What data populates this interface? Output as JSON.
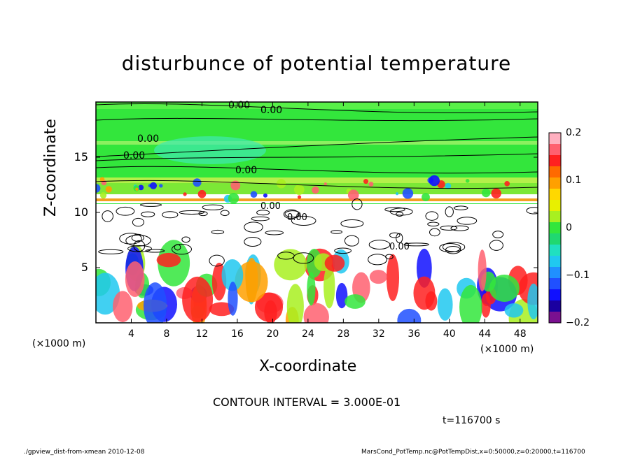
{
  "chart_data": {
    "type": "heatmap",
    "title": "disturbunce of potential temperature",
    "xlabel": "X-coordinate",
    "ylabel": "Z-coordinate",
    "x_unit": "(×1000 m)",
    "y_unit": "(×1000 m)",
    "xlim": [
      0,
      50
    ],
    "ylim": [
      0,
      20
    ],
    "x_ticks": [
      "4",
      "8",
      "12",
      "16",
      "20",
      "24",
      "28",
      "32",
      "36",
      "40",
      "44",
      "48"
    ],
    "y_ticks": [
      "5",
      "10",
      "15"
    ],
    "colorbar": {
      "range": [
        -0.2,
        0.2
      ],
      "tick_labels": [
        "0.2",
        "0.1",
        "0",
        "−0.1",
        "−0.2"
      ]
    },
    "contour_labels": [
      "0.00",
      "0.00",
      "0.00",
      "0.00",
      "0.00",
      "0.00",
      "0.00",
      "0.00"
    ],
    "contour_interval": "CONTOUR INTERVAL = 3.000E-01",
    "time_label": "t=116700 s"
  },
  "footer": {
    "left": "./gpview_dist-from-xmean  2010-12-08",
    "right": "MarsCond_PotTemp.nc@PotTempDist,x=0:50000,z=0:20000,t=116700"
  },
  "colors": {
    "background": "#ffffff",
    "frame": "#000000",
    "neutral_green": "#33e63c"
  }
}
